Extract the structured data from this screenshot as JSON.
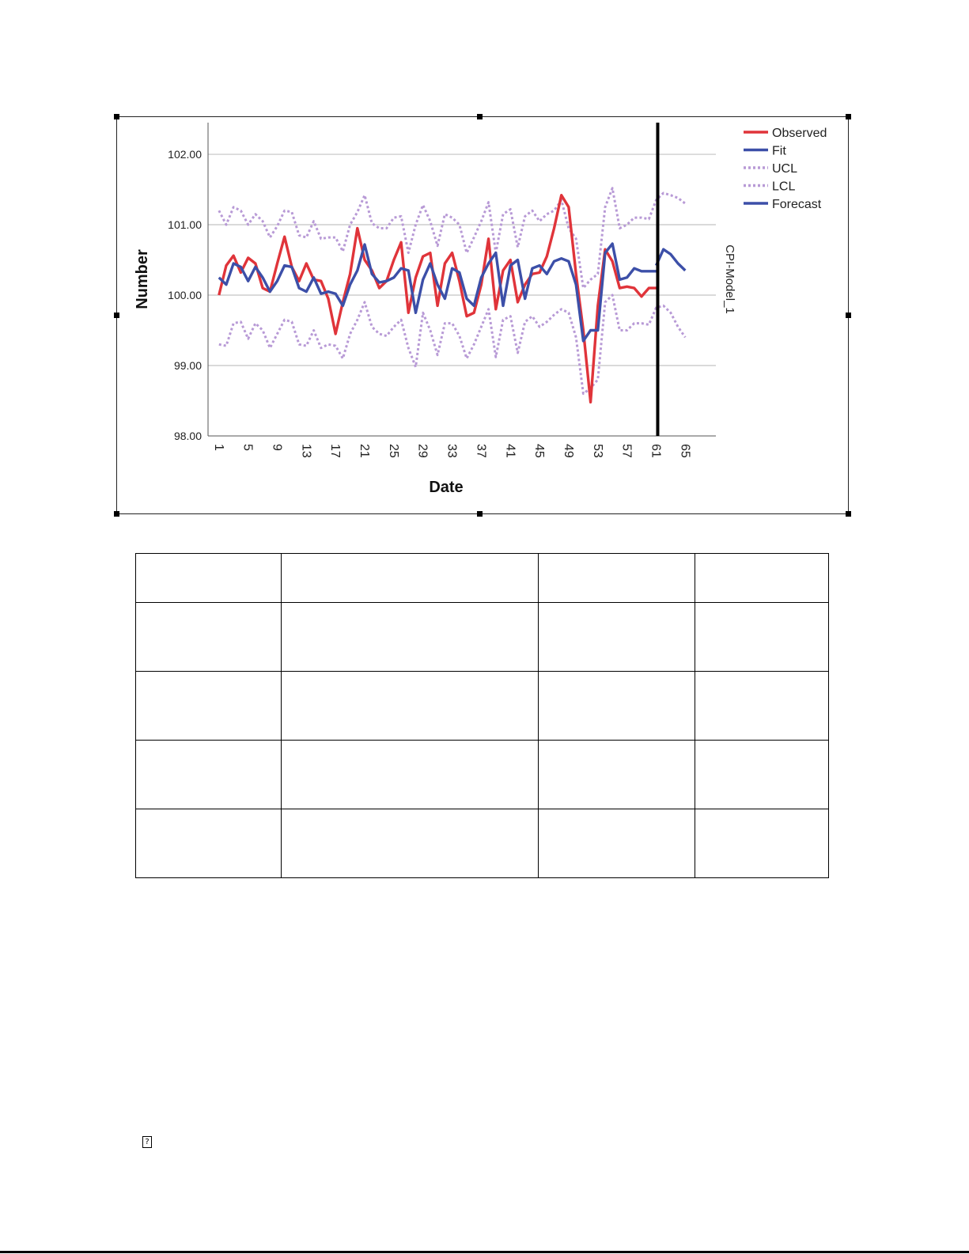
{
  "chart_data": {
    "type": "line",
    "xlabel": "Date",
    "ylabel": "Number",
    "right_label": "CPI-Model_1",
    "x_ticks": [
      "1",
      "5",
      "9",
      "13",
      "17",
      "21",
      "25",
      "29",
      "33",
      "37",
      "41",
      "45",
      "49",
      "53",
      "57",
      "61",
      "65"
    ],
    "y_ticks": [
      "98.00",
      "99.00",
      "100.00",
      "101.00",
      "102.00"
    ],
    "ylim": [
      98,
      102.45
    ],
    "xlim": [
      -0.5,
      69.2
    ],
    "forecast_start": 61,
    "grid": "horizontal",
    "legend_position": "top-right",
    "series": [
      {
        "name": "Observed",
        "color": "#e0343a",
        "style": "solid",
        "x": [
          1,
          2,
          3,
          4,
          5,
          6,
          7,
          8,
          9,
          10,
          11,
          12,
          13,
          14,
          15,
          16,
          17,
          18,
          19,
          20,
          21,
          22,
          23,
          24,
          25,
          26,
          27,
          28,
          29,
          30,
          31,
          32,
          33,
          34,
          35,
          36,
          37,
          38,
          39,
          40,
          41,
          42,
          43,
          44,
          45,
          46,
          47,
          48,
          49,
          50,
          51,
          52,
          53,
          54,
          55,
          56,
          57,
          58,
          59,
          60,
          61
        ],
        "values": [
          100.0,
          100.42,
          100.56,
          100.32,
          100.53,
          100.45,
          100.1,
          100.05,
          100.45,
          100.83,
          100.4,
          100.2,
          100.45,
          100.22,
          100.2,
          99.95,
          99.45,
          99.9,
          100.3,
          100.95,
          100.5,
          100.35,
          100.1,
          100.2,
          100.5,
          100.75,
          99.75,
          100.25,
          100.55,
          100.6,
          99.85,
          100.45,
          100.6,
          100.2,
          99.7,
          99.75,
          100.15,
          100.8,
          99.8,
          100.35,
          100.5,
          99.9,
          100.15,
          100.3,
          100.32,
          100.55,
          100.95,
          101.42,
          101.25,
          100.3,
          99.5,
          98.48,
          99.85,
          100.65,
          100.48,
          100.1,
          100.12,
          100.1,
          99.98,
          100.1,
          100.1
        ]
      },
      {
        "name": "Fit",
        "color": "#3c4fa8",
        "style": "solid",
        "x": [
          1,
          2,
          3,
          4,
          5,
          6,
          7,
          8,
          9,
          10,
          11,
          12,
          13,
          14,
          15,
          16,
          17,
          18,
          19,
          20,
          21,
          22,
          23,
          24,
          25,
          26,
          27,
          28,
          29,
          30,
          31,
          32,
          33,
          34,
          35,
          36,
          37,
          38,
          39,
          40,
          41,
          42,
          43,
          44,
          45,
          46,
          47,
          48,
          49,
          50,
          51,
          52,
          53,
          54,
          55,
          56,
          57,
          58,
          59,
          60,
          61
        ],
        "values": [
          100.25,
          100.15,
          100.45,
          100.4,
          100.2,
          100.4,
          100.25,
          100.05,
          100.2,
          100.42,
          100.4,
          100.1,
          100.05,
          100.25,
          100.02,
          100.05,
          100.02,
          99.85,
          100.15,
          100.35,
          100.72,
          100.3,
          100.18,
          100.2,
          100.25,
          100.38,
          100.35,
          99.75,
          100.22,
          100.45,
          100.15,
          99.95,
          100.38,
          100.32,
          99.95,
          99.85,
          100.25,
          100.45,
          100.6,
          99.85,
          100.42,
          100.5,
          99.95,
          100.38,
          100.42,
          100.3,
          100.48,
          100.52,
          100.48,
          100.15,
          99.35,
          99.5,
          99.5,
          100.6,
          100.73,
          100.22,
          100.25,
          100.38,
          100.34,
          100.34,
          100.34
        ]
      },
      {
        "name": "UCL",
        "color": "#b89ad6",
        "style": "dotted",
        "x": [
          1,
          2,
          3,
          4,
          5,
          6,
          7,
          8,
          9,
          10,
          11,
          12,
          13,
          14,
          15,
          16,
          17,
          18,
          19,
          20,
          21,
          22,
          23,
          24,
          25,
          26,
          27,
          28,
          29,
          30,
          31,
          32,
          33,
          34,
          35,
          36,
          37,
          38,
          39,
          40,
          41,
          42,
          43,
          44,
          45,
          46,
          47,
          48,
          49,
          50,
          51,
          52,
          53,
          54,
          55,
          56,
          57,
          58,
          59,
          60,
          61,
          62,
          63,
          64,
          65
        ],
        "values": [
          101.2,
          101.0,
          101.25,
          101.2,
          101.0,
          101.15,
          101.05,
          100.82,
          100.98,
          101.2,
          101.18,
          100.85,
          100.82,
          101.05,
          100.8,
          100.82,
          100.82,
          100.62,
          101.0,
          101.18,
          101.42,
          101.02,
          100.95,
          100.95,
          101.1,
          101.12,
          100.6,
          101.0,
          101.28,
          101.05,
          100.7,
          101.15,
          101.1,
          101.0,
          100.6,
          100.82,
          101.05,
          101.32,
          100.6,
          101.15,
          101.22,
          100.68,
          101.12,
          101.2,
          101.05,
          101.15,
          101.2,
          101.35,
          100.95,
          100.8,
          100.1,
          100.22,
          100.3,
          101.25,
          101.52,
          100.95,
          101.0,
          101.1,
          101.1,
          101.08,
          101.35,
          101.45,
          101.42,
          101.38,
          101.3
        ]
      },
      {
        "name": "LCL",
        "color": "#b89ad6",
        "style": "dotted",
        "x": [
          1,
          2,
          3,
          4,
          5,
          6,
          7,
          8,
          9,
          10,
          11,
          12,
          13,
          14,
          15,
          16,
          17,
          18,
          19,
          20,
          21,
          22,
          23,
          24,
          25,
          26,
          27,
          28,
          29,
          30,
          31,
          32,
          33,
          34,
          35,
          36,
          37,
          38,
          39,
          40,
          41,
          42,
          43,
          44,
          45,
          46,
          47,
          48,
          49,
          50,
          51,
          52,
          53,
          54,
          55,
          56,
          57,
          58,
          59,
          60,
          61,
          62,
          63,
          64,
          65
        ],
        "values": [
          99.3,
          99.28,
          99.6,
          99.62,
          99.38,
          99.6,
          99.5,
          99.25,
          99.45,
          99.65,
          99.62,
          99.3,
          99.28,
          99.5,
          99.25,
          99.3,
          99.28,
          99.1,
          99.45,
          99.65,
          99.9,
          99.55,
          99.45,
          99.42,
          99.55,
          99.65,
          99.25,
          98.98,
          99.75,
          99.5,
          99.15,
          99.6,
          99.6,
          99.42,
          99.1,
          99.3,
          99.55,
          99.8,
          99.12,
          99.65,
          99.7,
          99.18,
          99.62,
          99.7,
          99.55,
          99.62,
          99.72,
          99.8,
          99.75,
          99.4,
          98.6,
          98.68,
          98.8,
          99.9,
          100.0,
          99.5,
          99.5,
          99.6,
          99.6,
          99.58,
          99.82,
          99.85,
          99.75,
          99.55,
          99.4
        ]
      },
      {
        "name": "Forecast",
        "color": "#3c4fa8",
        "style": "solid",
        "x": [
          61,
          62,
          63,
          64,
          65
        ],
        "values": [
          100.42,
          100.65,
          100.58,
          100.45,
          100.35
        ]
      }
    ]
  },
  "table": {
    "col_widths": [
      183,
      324,
      197,
      168
    ],
    "row_heights": [
      61,
      86,
      86,
      86,
      86
    ]
  },
  "footer": {
    "glyph": "?"
  }
}
